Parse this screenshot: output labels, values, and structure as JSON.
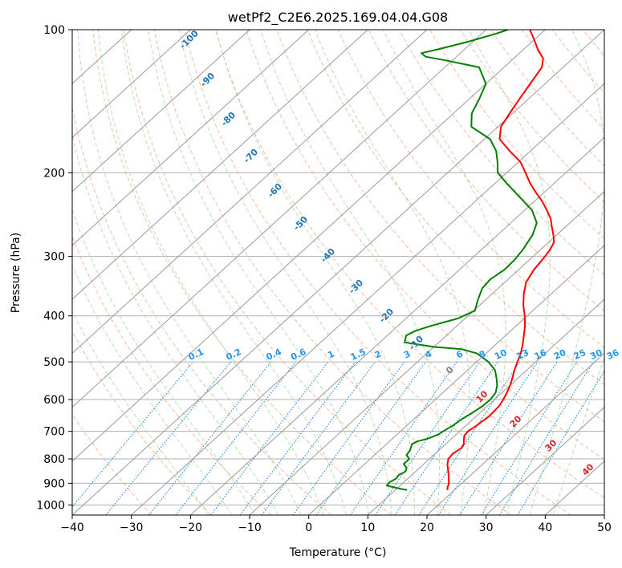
{
  "chart_data": {
    "type": "line",
    "title": "wetPf2_C2E6.2025.169.04.04.G08",
    "xlabel": "Temperature (°C)",
    "ylabel": "Pressure (hPa)",
    "xlim": [
      -40,
      50
    ],
    "ylim": [
      1050,
      100
    ],
    "y_scale": "log",
    "skew": true,
    "grid": true,
    "x_ticks": [
      -40,
      -30,
      -20,
      -10,
      0,
      10,
      20,
      30,
      40,
      50
    ],
    "y_ticks": [
      100,
      200,
      300,
      400,
      500,
      600,
      700,
      800,
      900,
      1000
    ],
    "colors": {
      "temperature": "#ff0000",
      "dewpoint": "#008000",
      "dry_adiabat": "#f4a582",
      "moist_adiabat": "#a6d8a0",
      "mixing_ratio": "#1e88e5",
      "theta_e_label": "#1f77b4",
      "mixing_label": "#2196f3",
      "warm_label": "#d62728",
      "isotherm": "#9a9a9a"
    },
    "series": [
      {
        "key": "temperature",
        "points": [
          [
            930,
            18.8
          ],
          [
            920,
            18.4
          ],
          [
            900,
            17.8
          ],
          [
            880,
            16.9
          ],
          [
            860,
            16.0
          ],
          [
            840,
            15.0
          ],
          [
            820,
            14.0
          ],
          [
            800,
            13.2
          ],
          [
            780,
            13.0
          ],
          [
            760,
            13.4
          ],
          [
            745,
            13.1
          ],
          [
            730,
            12.3
          ],
          [
            715,
            11.6
          ],
          [
            700,
            11.4
          ],
          [
            680,
            11.8
          ],
          [
            650,
            12.2
          ],
          [
            620,
            12.0
          ],
          [
            600,
            11.5
          ],
          [
            580,
            10.8
          ],
          [
            560,
            10.0
          ],
          [
            540,
            9.0
          ],
          [
            520,
            7.9
          ],
          [
            500,
            6.9
          ],
          [
            480,
            5.9
          ],
          [
            460,
            4.6
          ],
          [
            440,
            3.1
          ],
          [
            420,
            1.5
          ],
          [
            400,
            -0.4
          ],
          [
            380,
            -2.6
          ],
          [
            360,
            -4.6
          ],
          [
            340,
            -6.4
          ],
          [
            320,
            -7.4
          ],
          [
            300,
            -8.0
          ],
          [
            290,
            -8.4
          ],
          [
            280,
            -9.1
          ],
          [
            270,
            -10.6
          ],
          [
            260,
            -12.3
          ],
          [
            250,
            -14.0
          ],
          [
            240,
            -16.2
          ],
          [
            230,
            -18.6
          ],
          [
            220,
            -21.4
          ],
          [
            210,
            -24.2
          ],
          [
            200,
            -26.8
          ],
          [
            190,
            -29.6
          ],
          [
            180,
            -33.5
          ],
          [
            170,
            -37.4
          ],
          [
            160,
            -39.5
          ],
          [
            150,
            -40.5
          ],
          [
            140,
            -41.5
          ],
          [
            130,
            -42.5
          ],
          [
            120,
            -43.6
          ],
          [
            115,
            -45.0
          ],
          [
            110,
            -47.6
          ],
          [
            105,
            -50.0
          ],
          [
            100,
            -52.6
          ]
        ]
      },
      {
        "key": "dewpoint",
        "points": [
          [
            930,
            12.0
          ],
          [
            925,
            10.7
          ],
          [
            915,
            8.7
          ],
          [
            910,
            7.7
          ],
          [
            895,
            7.6
          ],
          [
            880,
            8.0
          ],
          [
            865,
            7.8
          ],
          [
            850,
            8.3
          ],
          [
            835,
            7.8
          ],
          [
            820,
            6.6
          ],
          [
            800,
            6.6
          ],
          [
            785,
            5.4
          ],
          [
            770,
            5.2
          ],
          [
            755,
            4.7
          ],
          [
            745,
            4.3
          ],
          [
            735,
            4.7
          ],
          [
            725,
            6.0
          ],
          [
            710,
            7.0
          ],
          [
            700,
            7.2
          ],
          [
            680,
            7.8
          ],
          [
            660,
            8.1
          ],
          [
            640,
            8.7
          ],
          [
            620,
            9.2
          ],
          [
            600,
            9.3
          ],
          [
            580,
            8.9
          ],
          [
            560,
            7.8
          ],
          [
            540,
            6.3
          ],
          [
            520,
            4.6
          ],
          [
            500,
            2.0
          ],
          [
            480,
            -1.5
          ],
          [
            470,
            -4.9
          ],
          [
            465,
            -10.0
          ],
          [
            455,
            -15.8
          ],
          [
            440,
            -16.8
          ],
          [
            430,
            -16.1
          ],
          [
            420,
            -14.4
          ],
          [
            405,
            -11.2
          ],
          [
            390,
            -9.8
          ],
          [
            370,
            -11.3
          ],
          [
            360,
            -12.0
          ],
          [
            350,
            -12.7
          ],
          [
            335,
            -13.0
          ],
          [
            320,
            -12.4
          ],
          [
            305,
            -12.5
          ],
          [
            290,
            -13.0
          ],
          [
            270,
            -14.1
          ],
          [
            255,
            -15.6
          ],
          [
            240,
            -18.7
          ],
          [
            225,
            -23.3
          ],
          [
            210,
            -28.2
          ],
          [
            200,
            -31.5
          ],
          [
            190,
            -33.5
          ],
          [
            180,
            -35.8
          ],
          [
            170,
            -39.0
          ],
          [
            160,
            -44.5
          ],
          [
            150,
            -46.9
          ],
          [
            140,
            -48.3
          ],
          [
            130,
            -50.0
          ],
          [
            120,
            -54.2
          ],
          [
            116,
            -61.2
          ],
          [
            114,
            -65.2
          ],
          [
            112,
            -66.6
          ],
          [
            110,
            -64.5
          ],
          [
            106,
            -60.8
          ],
          [
            102,
            -57.6
          ],
          [
            100,
            -56.3
          ]
        ]
      }
    ],
    "theta_e_labels": [
      {
        "value": -100,
        "text": "-100"
      },
      {
        "value": -90,
        "text": "-90"
      },
      {
        "value": -80,
        "text": "-80"
      },
      {
        "value": -70,
        "text": "-70"
      },
      {
        "value": -60,
        "text": "-60"
      },
      {
        "value": -50,
        "text": "-50"
      },
      {
        "value": -40,
        "text": "-40"
      },
      {
        "value": -30,
        "text": "-30"
      },
      {
        "value": -20,
        "text": "-20"
      },
      {
        "value": -10,
        "text": "-10"
      },
      {
        "value": 0,
        "text": "0"
      },
      {
        "value": 10,
        "text": "10"
      },
      {
        "value": 20,
        "text": "20"
      },
      {
        "value": 30,
        "text": "30"
      },
      {
        "value": 40,
        "text": "40"
      }
    ],
    "mixing_ratios": [
      0.1,
      0.2,
      0.4,
      0.6,
      1,
      1.5,
      2,
      3,
      4,
      6,
      8,
      10,
      13,
      16,
      20,
      25,
      30,
      36
    ],
    "mixing_ratio_labels": [
      "0.1",
      "0.2",
      "0.4",
      "0.6",
      "1",
      "1.5",
      "2",
      "3",
      "4",
      "6",
      "8",
      "10",
      "13",
      "16",
      "20",
      "25",
      "30",
      "36"
    ]
  }
}
